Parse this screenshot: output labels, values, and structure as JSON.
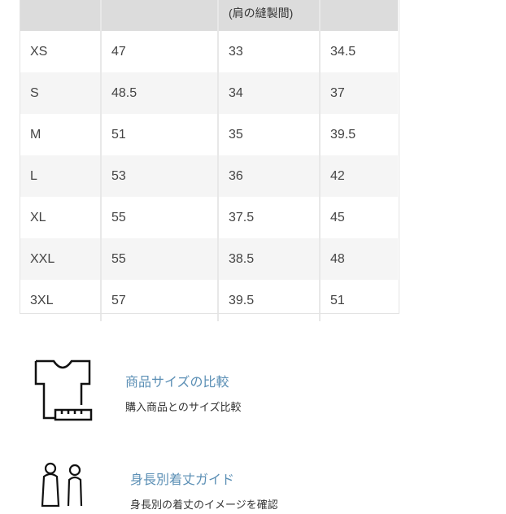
{
  "table": {
    "header": [
      "",
      "",
      "(肩の縫製間)",
      ""
    ],
    "rows": [
      [
        "XS",
        "47",
        "33",
        "34.5"
      ],
      [
        "S",
        "48.5",
        "34",
        "37"
      ],
      [
        "M",
        "51",
        "35",
        "39.5"
      ],
      [
        "L",
        "53",
        "36",
        "42"
      ],
      [
        "XL",
        "55",
        "37.5",
        "45"
      ],
      [
        "XXL",
        "55",
        "38.5",
        "48"
      ],
      [
        "3XL",
        "57",
        "39.5",
        "51"
      ]
    ]
  },
  "guides": [
    {
      "title": "商品サイズの比較",
      "subtitle": "購入商品とのサイズ比較",
      "icon": "tshirt-ruler-icon"
    },
    {
      "title": "身長別着丈ガイド",
      "subtitle": "身長別の着丈のイメージを確認",
      "icon": "people-icon"
    }
  ],
  "colors": {
    "link": "#5b8fb5",
    "header_bg": "#dcdcdc"
  }
}
